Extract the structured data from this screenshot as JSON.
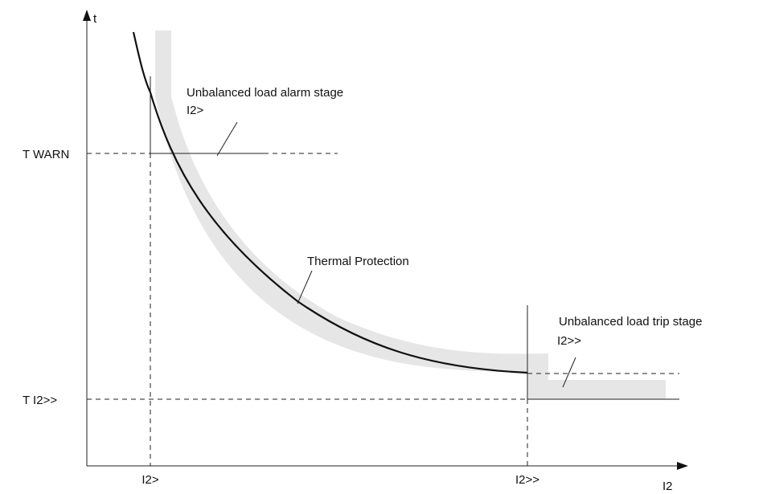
{
  "axes": {
    "y_label": "t",
    "x_label": "I2"
  },
  "levels": {
    "t_warn": "T WARN",
    "t_trip": "T I2>>"
  },
  "x_marks": {
    "alarm": "I2>",
    "trip": "I2>>"
  },
  "annotations": {
    "alarm_stage": {
      "title": "Unbalanced load alarm stage",
      "symbol": "I2>"
    },
    "thermal": {
      "title": "Thermal Protection"
    },
    "trip_stage": {
      "title": "Unbalanced load trip stage",
      "symbol": "I2>>"
    }
  }
}
